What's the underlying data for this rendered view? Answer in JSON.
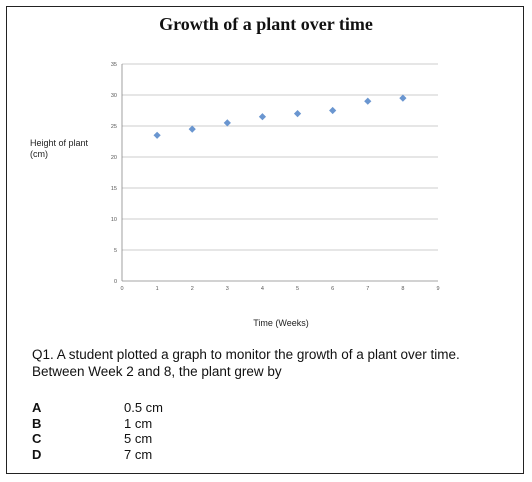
{
  "question": {
    "text": "Q1. A student plotted a graph to monitor the growth of a plant over time. Between Week 2 and 8, the plant grew by",
    "options": [
      {
        "letter": "A",
        "value": "0.5 cm"
      },
      {
        "letter": "B",
        "value": "1 cm"
      },
      {
        "letter": "C",
        "value": "5 cm"
      },
      {
        "letter": "D",
        "value": "7 cm"
      }
    ]
  },
  "chart_data": {
    "type": "scatter",
    "title": "Growth of a plant over time",
    "xlabel": "Time (Weeks)",
    "ylabel": "Height of plant (cm)",
    "xlim": [
      0,
      9
    ],
    "ylim": [
      0,
      35
    ],
    "xticks": [
      0,
      1,
      2,
      3,
      4,
      5,
      6,
      7,
      8,
      9
    ],
    "yticks": [
      0,
      5,
      10,
      15,
      20,
      25,
      30,
      35
    ],
    "grid": "horizontal",
    "marker_color": "#6a96d0",
    "series": [
      {
        "x": [
          1,
          2,
          3,
          4,
          5,
          6,
          7,
          8
        ],
        "y": [
          23.5,
          24.5,
          25.5,
          26.5,
          27,
          27.5,
          29,
          29.5
        ]
      }
    ]
  }
}
